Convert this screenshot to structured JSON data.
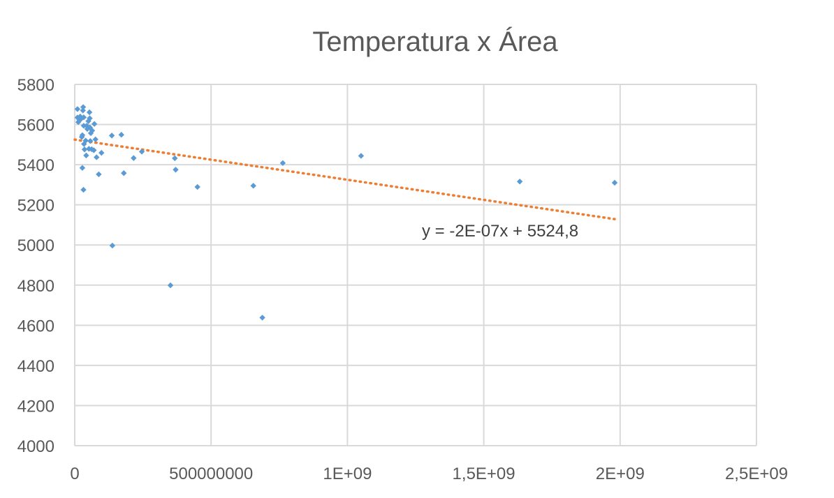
{
  "chart_data": {
    "type": "scatter",
    "title": "Temperatura x Área",
    "xlabel": "",
    "ylabel": "",
    "xlim": [
      0,
      2500000000
    ],
    "ylim": [
      4000,
      5800
    ],
    "x_ticks": [
      "0",
      "500000000",
      "1E+09",
      "1,5E+09",
      "2E+09",
      "2,5E+09"
    ],
    "y_ticks": [
      "4000",
      "4200",
      "4400",
      "4600",
      "4800",
      "5000",
      "5200",
      "5400",
      "5600",
      "5800"
    ],
    "grid": true,
    "legend": "none",
    "point_color": "#5B9BD5",
    "trendline": {
      "type": "linear",
      "color": "#ED7D31",
      "style": "dotted",
      "slope": -2e-07,
      "intercept": 5524.8,
      "x_range": [
        0,
        1980000000
      ],
      "equation": "y = -2E-07x + 5524,8"
    },
    "points": [
      [
        10000000,
        5677
      ],
      [
        10000000,
        5635
      ],
      [
        13000000,
        5612
      ],
      [
        17000000,
        5624
      ],
      [
        20000000,
        5640
      ],
      [
        23000000,
        5628
      ],
      [
        26000000,
        5538
      ],
      [
        28000000,
        5547
      ],
      [
        28000000,
        5384
      ],
      [
        30000000,
        5670
      ],
      [
        31000000,
        5687
      ],
      [
        32000000,
        5275
      ],
      [
        33000000,
        5636
      ],
      [
        33000000,
        5594
      ],
      [
        34000000,
        5503
      ],
      [
        36000000,
        5476
      ],
      [
        40000000,
        5520
      ],
      [
        42000000,
        5446
      ],
      [
        44000000,
        5594
      ],
      [
        46000000,
        5578
      ],
      [
        50000000,
        5617
      ],
      [
        52000000,
        5479
      ],
      [
        54000000,
        5661
      ],
      [
        55000000,
        5631
      ],
      [
        56000000,
        5585
      ],
      [
        57000000,
        5518
      ],
      [
        59000000,
        5557
      ],
      [
        62000000,
        5477
      ],
      [
        64000000,
        5570
      ],
      [
        70000000,
        5472
      ],
      [
        72000000,
        5603
      ],
      [
        76000000,
        5526
      ],
      [
        80000000,
        5437
      ],
      [
        88000000,
        5352
      ],
      [
        98000000,
        5459
      ],
      [
        136000000,
        5545
      ],
      [
        138000000,
        4997
      ],
      [
        171000000,
        5549
      ],
      [
        180000000,
        5358
      ],
      [
        216000000,
        5433
      ],
      [
        246000000,
        5465
      ],
      [
        351000000,
        4799
      ],
      [
        367000000,
        5432
      ],
      [
        370000000,
        5375
      ],
      [
        450000000,
        5289
      ],
      [
        655000000,
        5295
      ],
      [
        688000000,
        4638
      ],
      [
        763000000,
        5408
      ],
      [
        1050000000,
        5444
      ],
      [
        1632000000,
        5316
      ],
      [
        1980000000,
        5310
      ]
    ]
  }
}
